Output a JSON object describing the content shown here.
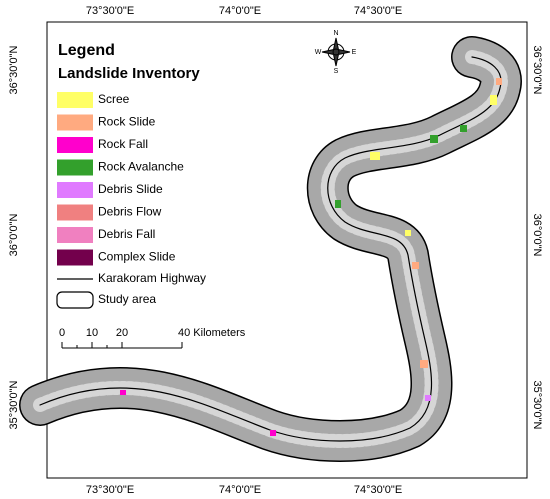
{
  "legend": {
    "title": "Legend",
    "subtitle": "Landslide Inventory",
    "items": [
      {
        "label": "Scree",
        "color": "#ffff66"
      },
      {
        "label": "Rock Slide",
        "color": "#ffaa80"
      },
      {
        "label": "Rock Fall",
        "color": "#ff00cc"
      },
      {
        "label": "Rock Avalanche",
        "color": "#33a02c"
      },
      {
        "label": "Debris Slide",
        "color": "#e07aff"
      },
      {
        "label": "Debris Flow",
        "color": "#f08080"
      },
      {
        "label": "Debris Fall",
        "color": "#f080c0"
      },
      {
        "label": "Complex Slide",
        "color": "#73004c"
      }
    ],
    "highway": "Karakoram Highway",
    "study_area": "Study area"
  },
  "scale_bar": {
    "labels": [
      "0",
      "10",
      "20",
      "40 Kilometers"
    ]
  },
  "compass": {
    "n": "N",
    "s": "S",
    "e": "E",
    "w": "W"
  },
  "graticule": {
    "top": [
      "73°30'0\"E",
      "74°0'0\"E",
      "74°30'0\"E"
    ],
    "bottom": [
      "73°30'0\"E",
      "74°0'0\"E",
      "74°30'0\"E"
    ],
    "left": [
      "36°30'0\"N",
      "36°0'0\"N",
      "35°30'0\"N"
    ],
    "right": [
      "36°30'0\"N",
      "36°0'0\"N",
      "35°30'0\"N"
    ]
  }
}
